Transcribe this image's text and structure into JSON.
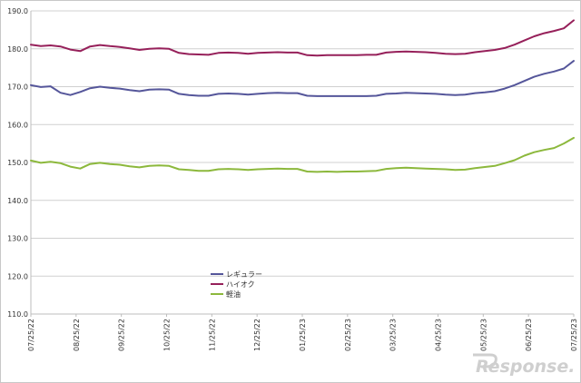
{
  "chart_data": {
    "type": "line",
    "title": "",
    "xlabel": "",
    "ylabel": "",
    "ylim": [
      110.0,
      190.0
    ],
    "ytick_values": [
      110.0,
      120.0,
      130.0,
      140.0,
      150.0,
      160.0,
      170.0,
      180.0,
      190.0
    ],
    "ytick_labels": [
      "110.0",
      "120.0",
      "130.0",
      "140.0",
      "150.0",
      "160.0",
      "170.0",
      "180.0",
      "190.0"
    ],
    "xtick_labels": [
      "07/25/22",
      "08/25/22",
      "09/25/22",
      "10/25/22",
      "11/25/22",
      "12/25/22",
      "01/25/23",
      "02/25/23",
      "03/25/23",
      "04/25/23",
      "05/25/23",
      "06/25/23",
      "07/25/23"
    ],
    "grid": "horizontal",
    "legend_position": "bottom-left-inside",
    "series": [
      {
        "name": "レギュラー",
        "color": "#55569a",
        "values": [
          170.4,
          169.9,
          170.1,
          168.4,
          167.8,
          168.6,
          169.6,
          170.0,
          169.7,
          169.5,
          169.1,
          168.8,
          169.2,
          169.3,
          169.2,
          168.1,
          167.8,
          167.6,
          167.6,
          168.1,
          168.2,
          168.1,
          167.9,
          168.1,
          168.3,
          168.4,
          168.3,
          168.3,
          167.6,
          167.5,
          167.5,
          167.5,
          167.5,
          167.5,
          167.5,
          167.6,
          168.1,
          168.2,
          168.4,
          168.3,
          168.2,
          168.1,
          167.9,
          167.8,
          167.9,
          168.3,
          168.5,
          168.8,
          169.5,
          170.4,
          171.5,
          172.6,
          173.4,
          174.0,
          174.8,
          176.8
        ]
      },
      {
        "name": "ハイオク",
        "color": "#96205a",
        "values": [
          181.1,
          180.7,
          180.9,
          180.6,
          179.8,
          179.4,
          180.6,
          181.0,
          180.7,
          180.5,
          180.1,
          179.7,
          180.0,
          180.1,
          180.0,
          178.9,
          178.6,
          178.5,
          178.4,
          178.9,
          179.0,
          178.9,
          178.7,
          178.9,
          179.0,
          179.1,
          179.0,
          179.0,
          178.3,
          178.2,
          178.3,
          178.3,
          178.3,
          178.3,
          178.4,
          178.4,
          179.0,
          179.2,
          179.3,
          179.2,
          179.1,
          178.9,
          178.7,
          178.6,
          178.7,
          179.1,
          179.4,
          179.7,
          180.2,
          181.1,
          182.2,
          183.3,
          184.1,
          184.7,
          185.4,
          187.5
        ]
      },
      {
        "name": "軽油",
        "color": "#8cb83c",
        "values": [
          150.5,
          149.9,
          150.2,
          149.8,
          148.9,
          148.4,
          149.6,
          149.9,
          149.6,
          149.4,
          149.0,
          148.7,
          149.1,
          149.2,
          149.1,
          148.2,
          148.0,
          147.8,
          147.8,
          148.2,
          148.3,
          148.2,
          148.0,
          148.2,
          148.3,
          148.4,
          148.3,
          148.3,
          147.6,
          147.5,
          147.6,
          147.5,
          147.6,
          147.6,
          147.7,
          147.8,
          148.3,
          148.5,
          148.6,
          148.5,
          148.4,
          148.3,
          148.2,
          148.0,
          148.1,
          148.5,
          148.8,
          149.1,
          149.8,
          150.6,
          151.8,
          152.7,
          153.3,
          153.8,
          155.0,
          156.5
        ]
      }
    ]
  },
  "watermark": "Response."
}
